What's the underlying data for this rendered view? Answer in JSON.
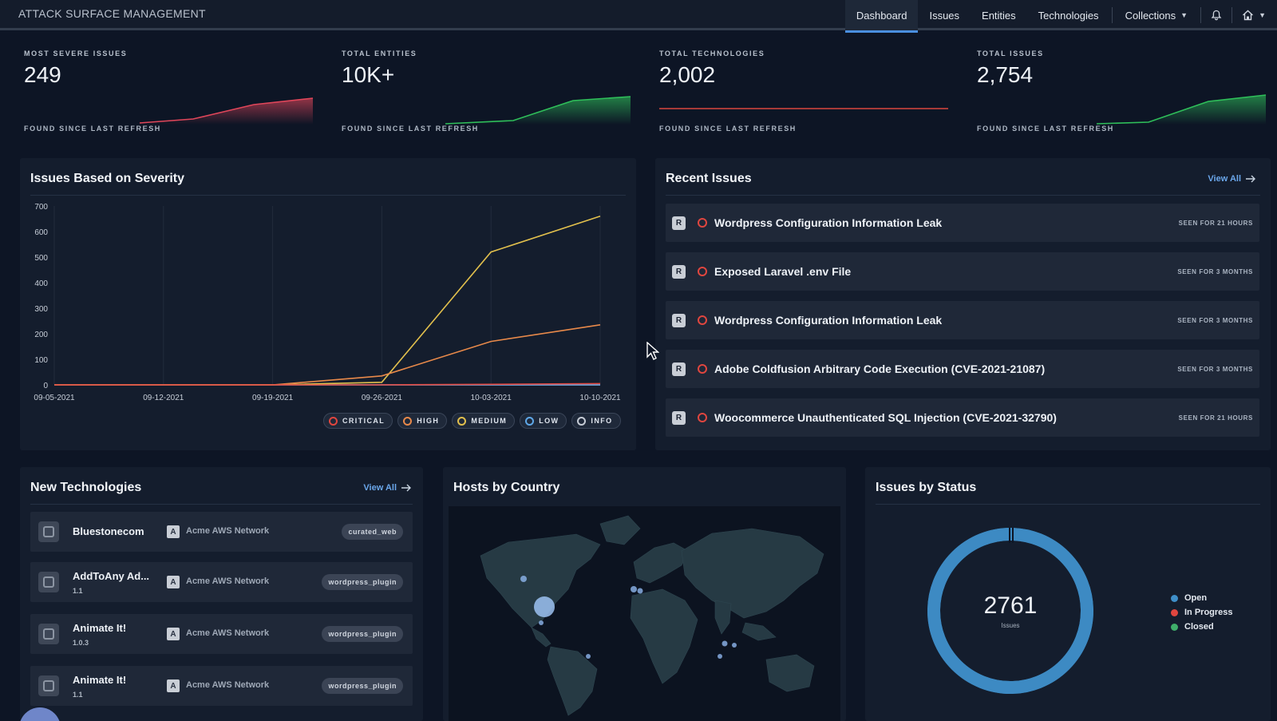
{
  "app": {
    "title": "ATTACK SURFACE MANAGEMENT"
  },
  "nav": {
    "dashboard": "Dashboard",
    "issues": "Issues",
    "entities": "Entities",
    "technologies": "Technologies",
    "collections": "Collections"
  },
  "stats": [
    {
      "label": "MOST SEVERE ISSUES",
      "value": "249",
      "foot": "FOUND SINCE LAST REFRESH",
      "color": "#e0465a"
    },
    {
      "label": "TOTAL ENTITIES",
      "value": "10K+",
      "foot": "FOUND SINCE LAST REFRESH",
      "color": "#2fbf5a"
    },
    {
      "label": "TOTAL TECHNOLOGIES",
      "value": "2,002",
      "foot": "FOUND SINCE LAST REFRESH",
      "color": "#d9463f"
    },
    {
      "label": "TOTAL ISSUES",
      "value": "2,754",
      "foot": "FOUND SINCE LAST REFRESH",
      "color": "#2fbf5a"
    }
  ],
  "severity": {
    "title": "Issues Based on Severity",
    "legend": [
      {
        "label": "CRITICAL",
        "color": "#e0463f"
      },
      {
        "label": "HIGH",
        "color": "#e8894a"
      },
      {
        "label": "MEDIUM",
        "color": "#e2c04d"
      },
      {
        "label": "LOW",
        "color": "#5fa8e8"
      },
      {
        "label": "INFO",
        "color": "#c6ccd6"
      }
    ]
  },
  "chart_data": {
    "type": "line",
    "x": [
      "09-05-2021",
      "09-12-2021",
      "09-19-2021",
      "09-26-2021",
      "10-03-2021",
      "10-10-2021"
    ],
    "ylim": [
      0,
      700
    ],
    "yticks": [
      0,
      100,
      200,
      300,
      400,
      500,
      600,
      700
    ],
    "series": [
      {
        "name": "CRITICAL",
        "color": "#e0463f",
        "values": [
          0,
          0,
          0,
          0,
          2,
          5
        ]
      },
      {
        "name": "HIGH",
        "color": "#e8894a",
        "values": [
          0,
          0,
          0,
          35,
          170,
          235
        ]
      },
      {
        "name": "MEDIUM",
        "color": "#e2c04d",
        "values": [
          0,
          0,
          0,
          10,
          520,
          660
        ]
      },
      {
        "name": "LOW",
        "color": "#5fa8e8",
        "values": [
          0,
          0,
          0,
          0,
          0,
          0
        ]
      },
      {
        "name": "INFO",
        "color": "#c6ccd6",
        "values": [
          0,
          0,
          0,
          0,
          0,
          0
        ]
      }
    ]
  },
  "recent": {
    "title": "Recent Issues",
    "view_all": "View All",
    "items": [
      {
        "badge": "R",
        "name": "Wordpress Configuration Information Leak",
        "seen": "SEEN FOR 21 HOURS"
      },
      {
        "badge": "R",
        "name": "Exposed Laravel .env File",
        "seen": "SEEN FOR 3 MONTHS"
      },
      {
        "badge": "R",
        "name": "Wordpress Configuration Information Leak",
        "seen": "SEEN FOR 3 MONTHS"
      },
      {
        "badge": "R",
        "name": "Adobe Coldfusion Arbitrary Code Execution (CVE-2021-21087)",
        "seen": "SEEN FOR 3 MONTHS"
      },
      {
        "badge": "R",
        "name": "Woocommerce Unauthenticated SQL Injection (CVE-2021-32790)",
        "seen": "SEEN FOR 21 HOURS"
      }
    ]
  },
  "tech": {
    "title": "New Technologies",
    "view_all": "View All",
    "items": [
      {
        "name": "Bluestonecom",
        "version": "",
        "net_badge": "A",
        "network": "Acme AWS Network",
        "tag": "curated_web"
      },
      {
        "name": "AddToAny Ad...",
        "version": "1.1",
        "net_badge": "A",
        "network": "Acme AWS Network",
        "tag": "wordpress_plugin"
      },
      {
        "name": "Animate It!",
        "version": "1.0.3",
        "net_badge": "A",
        "network": "Acme AWS Network",
        "tag": "wordpress_plugin"
      },
      {
        "name": "Animate It!",
        "version": "1.1",
        "net_badge": "A",
        "network": "Acme AWS Network",
        "tag": "wordpress_plugin"
      }
    ]
  },
  "hosts": {
    "title": "Hosts by Country"
  },
  "status": {
    "title": "Issues by Status",
    "total": "2761",
    "total_label": "Issues",
    "legend": [
      {
        "label": "Open",
        "color": "#3f8fc9"
      },
      {
        "label": "In Progress",
        "color": "#e0463f"
      },
      {
        "label": "Closed",
        "color": "#3fae6a"
      }
    ]
  }
}
